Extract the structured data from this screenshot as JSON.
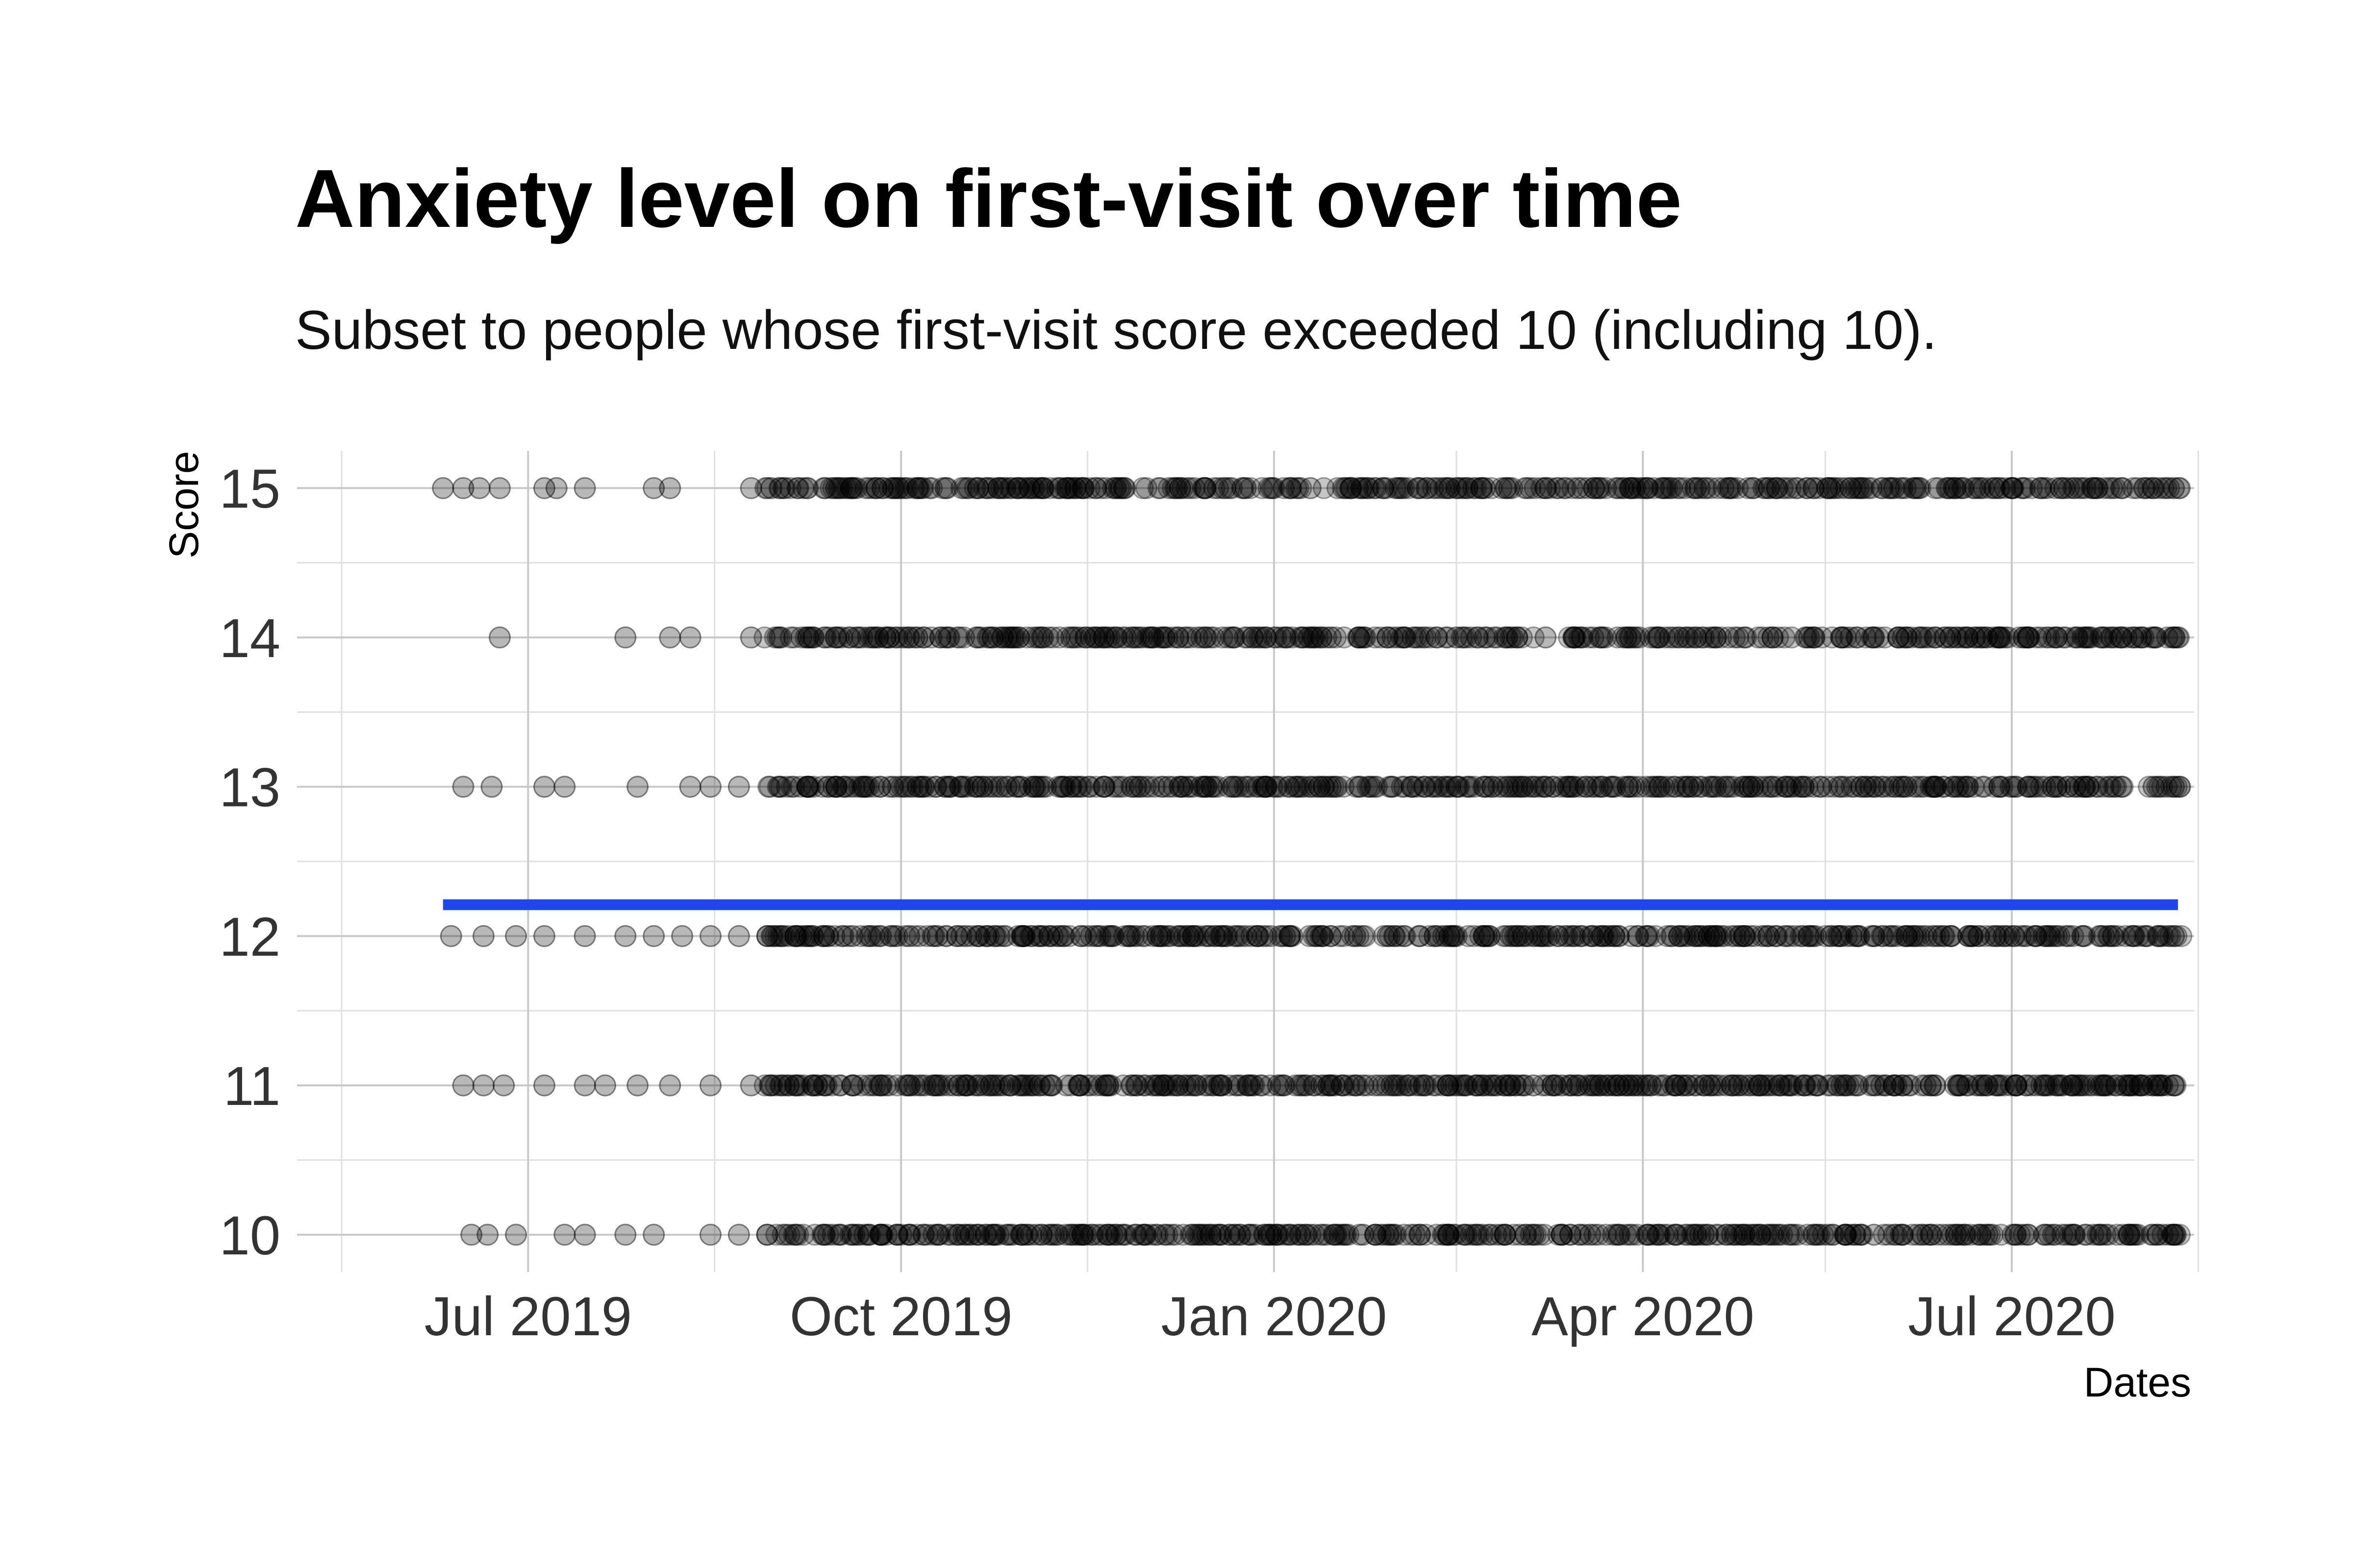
{
  "chart_data": {
    "type": "scatter",
    "title": "Anxiety level on first-visit over time",
    "subtitle": "Subset to people whose first-visit score exceeded 10 (including 10).",
    "xlabel": "Dates",
    "ylabel": "Score",
    "x_type": "date",
    "xlim": [
      "2019-05-05",
      "2020-08-15"
    ],
    "ylim": [
      9.75,
      15.25
    ],
    "x_ticks": [
      {
        "date": "2019-07-01",
        "label": "Jul 2019"
      },
      {
        "date": "2019-10-01",
        "label": "Oct 2019"
      },
      {
        "date": "2020-01-01",
        "label": "Jan 2020"
      },
      {
        "date": "2020-04-01",
        "label": "Apr 2020"
      },
      {
        "date": "2020-07-01",
        "label": "Jul 2020"
      }
    ],
    "x_minor_ticks": [
      "2019-05-16",
      "2019-08-16",
      "2019-11-16",
      "2020-02-15",
      "2020-05-16",
      "2020-08-16"
    ],
    "y_ticks": [
      10,
      11,
      12,
      13,
      14,
      15
    ],
    "y_minor_ticks": [
      10.5,
      11.5,
      12.5,
      13.5,
      14.5
    ],
    "point_color": "#000000",
    "point_opacity": 0.28,
    "date_range": [
      "2019-06-10",
      "2020-08-11"
    ],
    "series": [
      {
        "score": 15,
        "x": [
          "2019-06-10",
          "2019-06-15",
          "2019-06-19",
          "2019-06-24",
          "2019-07-05",
          "2019-07-08",
          "2019-07-15",
          "2019-08-01",
          "2019-08-05",
          "2019-08-25",
          "2019-08-30",
          "2019-09-12",
          "2019-09-15",
          "2019-09-19",
          "2019-09-25",
          "2019-09-29",
          "2019-10-05",
          "2019-10-12",
          "2019-10-20",
          "2019-10-25",
          "2019-10-30",
          "2019-11-05",
          "2019-11-11",
          "2019-11-15",
          "2019-11-25",
          "2019-12-08",
          "2019-12-15",
          "2019-12-20",
          "2019-12-25",
          "2020-01-10",
          "2020-01-20",
          "2020-01-24",
          "2020-01-28",
          "2020-02-01",
          "2020-02-15",
          "2020-02-22",
          "2020-02-28",
          "2020-03-08",
          "2020-03-16",
          "2020-03-20",
          "2020-03-26",
          "2020-04-01",
          "2020-04-06",
          "2020-04-15",
          "2020-04-22",
          "2020-04-28",
          "2020-05-04",
          "2020-05-18",
          "2020-05-25",
          "2020-06-02",
          "2020-06-08",
          "2020-06-15",
          "2020-06-22",
          "2020-07-01",
          "2020-07-08",
          "2020-07-14",
          "2020-07-22",
          "2020-07-28",
          "2020-08-05",
          "2020-08-10"
        ]
      },
      {
        "score": 14,
        "x": [
          "2019-06-24",
          "2019-07-25",
          "2019-08-05",
          "2019-08-10",
          "2019-08-25",
          "2019-09-01",
          "2019-09-08",
          "2019-09-15",
          "2019-09-20",
          "2019-09-28",
          "2019-10-05",
          "2019-10-12",
          "2019-10-20",
          "2019-10-28",
          "2019-11-05",
          "2019-11-12",
          "2019-11-20",
          "2019-11-28",
          "2019-12-05",
          "2019-12-15",
          "2019-12-22",
          "2019-12-30",
          "2020-01-08",
          "2020-01-15",
          "2020-01-22",
          "2020-01-29",
          "2020-02-05",
          "2020-02-15",
          "2020-02-22",
          "2020-03-01",
          "2020-03-08",
          "2020-03-15",
          "2020-03-22",
          "2020-03-29",
          "2020-04-05",
          "2020-04-12",
          "2020-04-19",
          "2020-04-26",
          "2020-05-03",
          "2020-05-12",
          "2020-05-20",
          "2020-05-28",
          "2020-06-05",
          "2020-06-12",
          "2020-06-20",
          "2020-06-28",
          "2020-07-05",
          "2020-07-12",
          "2020-07-20",
          "2020-07-28",
          "2020-08-05",
          "2020-08-10"
        ]
      },
      {
        "score": 13,
        "x": [
          "2019-06-15",
          "2019-06-22",
          "2019-07-05",
          "2019-07-10",
          "2019-07-28",
          "2019-08-10",
          "2019-08-15",
          "2019-08-22",
          "2019-09-01",
          "2019-09-08",
          "2019-09-15",
          "2019-09-22",
          "2019-09-29",
          "2019-10-06",
          "2019-10-13",
          "2019-10-20",
          "2019-10-27",
          "2019-11-05",
          "2019-11-12",
          "2019-11-20",
          "2019-11-28",
          "2019-12-06",
          "2019-12-14",
          "2019-12-22",
          "2019-12-30",
          "2020-01-07",
          "2020-01-15",
          "2020-01-22",
          "2020-01-30",
          "2020-02-07",
          "2020-02-15",
          "2020-02-22",
          "2020-03-01",
          "2020-03-08",
          "2020-03-15",
          "2020-03-22",
          "2020-03-29",
          "2020-04-05",
          "2020-04-12",
          "2020-04-19",
          "2020-04-26",
          "2020-05-03",
          "2020-05-10",
          "2020-05-20",
          "2020-05-28",
          "2020-06-05",
          "2020-06-12",
          "2020-06-20",
          "2020-06-28",
          "2020-07-05",
          "2020-07-12",
          "2020-07-20",
          "2020-07-28",
          "2020-08-05",
          "2020-08-10"
        ]
      },
      {
        "score": 12,
        "x": [
          "2019-06-12",
          "2019-06-20",
          "2019-06-28",
          "2019-07-05",
          "2019-07-15",
          "2019-07-25",
          "2019-08-01",
          "2019-08-08",
          "2019-08-15",
          "2019-08-22",
          "2019-08-29",
          "2019-09-05",
          "2019-09-12",
          "2019-09-19",
          "2019-09-26",
          "2019-10-03",
          "2019-10-10",
          "2019-10-17",
          "2019-10-24",
          "2019-10-31",
          "2019-11-10",
          "2019-11-18",
          "2019-11-26",
          "2019-12-04",
          "2019-12-12",
          "2019-12-20",
          "2019-12-28",
          "2020-01-05",
          "2020-01-13",
          "2020-01-21",
          "2020-01-29",
          "2020-02-06",
          "2020-02-14",
          "2020-02-22",
          "2020-03-01",
          "2020-03-09",
          "2020-03-17",
          "2020-03-25",
          "2020-04-02",
          "2020-04-10",
          "2020-04-18",
          "2020-04-26",
          "2020-05-04",
          "2020-05-12",
          "2020-05-20",
          "2020-05-28",
          "2020-06-05",
          "2020-06-13",
          "2020-06-21",
          "2020-06-29",
          "2020-07-07",
          "2020-07-15",
          "2020-07-23",
          "2020-07-31",
          "2020-08-06",
          "2020-08-10"
        ]
      },
      {
        "score": 11,
        "x": [
          "2019-06-15",
          "2019-06-20",
          "2019-06-25",
          "2019-07-05",
          "2019-07-15",
          "2019-07-20",
          "2019-07-28",
          "2019-08-05",
          "2019-08-15",
          "2019-08-25",
          "2019-09-05",
          "2019-09-12",
          "2019-09-19",
          "2019-09-26",
          "2019-10-03",
          "2019-10-10",
          "2019-10-17",
          "2019-10-24",
          "2019-10-31",
          "2019-11-07",
          "2019-11-14",
          "2019-11-21",
          "2019-11-28",
          "2019-12-05",
          "2019-12-12",
          "2019-12-19",
          "2019-12-26",
          "2020-01-02",
          "2020-01-09",
          "2020-01-16",
          "2020-01-23",
          "2020-01-30",
          "2020-02-06",
          "2020-02-13",
          "2020-02-20",
          "2020-02-27",
          "2020-03-05",
          "2020-03-12",
          "2020-03-19",
          "2020-03-26",
          "2020-04-02",
          "2020-04-09",
          "2020-04-16",
          "2020-04-23",
          "2020-04-30",
          "2020-05-07",
          "2020-05-14",
          "2020-05-21",
          "2020-05-28",
          "2020-06-04",
          "2020-06-11",
          "2020-06-18",
          "2020-06-25",
          "2020-07-02",
          "2020-07-09",
          "2020-07-16",
          "2020-07-23",
          "2020-07-30",
          "2020-08-06",
          "2020-08-10"
        ]
      },
      {
        "score": 10,
        "x": [
          "2019-06-17",
          "2019-06-21",
          "2019-06-28",
          "2019-07-10",
          "2019-07-15",
          "2019-07-25",
          "2019-08-01",
          "2019-08-15",
          "2019-08-22",
          "2019-08-29",
          "2019-09-05",
          "2019-09-12",
          "2019-09-19",
          "2019-09-26",
          "2019-10-03",
          "2019-10-10",
          "2019-10-17",
          "2019-10-24",
          "2019-10-31",
          "2019-11-07",
          "2019-11-14",
          "2019-11-21",
          "2019-11-28",
          "2019-12-05",
          "2019-12-12",
          "2019-12-19",
          "2019-12-26",
          "2020-01-02",
          "2020-01-09",
          "2020-01-16",
          "2020-01-23",
          "2020-01-30",
          "2020-02-06",
          "2020-02-13",
          "2020-02-20",
          "2020-02-27",
          "2020-03-05",
          "2020-03-12",
          "2020-03-19",
          "2020-03-26",
          "2020-04-02",
          "2020-04-09",
          "2020-04-16",
          "2020-04-23",
          "2020-04-30",
          "2020-05-07",
          "2020-05-14",
          "2020-05-21",
          "2020-05-28",
          "2020-06-04",
          "2020-06-11",
          "2020-06-18",
          "2020-06-25",
          "2020-07-02",
          "2020-07-09",
          "2020-07-16",
          "2020-07-23",
          "2020-07-30",
          "2020-08-06",
          "2020-08-10"
        ]
      }
    ],
    "trend_line": {
      "y": 12.21,
      "x_start": "2019-06-10",
      "x_end": "2020-08-11",
      "color": "#2146e8"
    },
    "grid": true,
    "legend": "none"
  }
}
